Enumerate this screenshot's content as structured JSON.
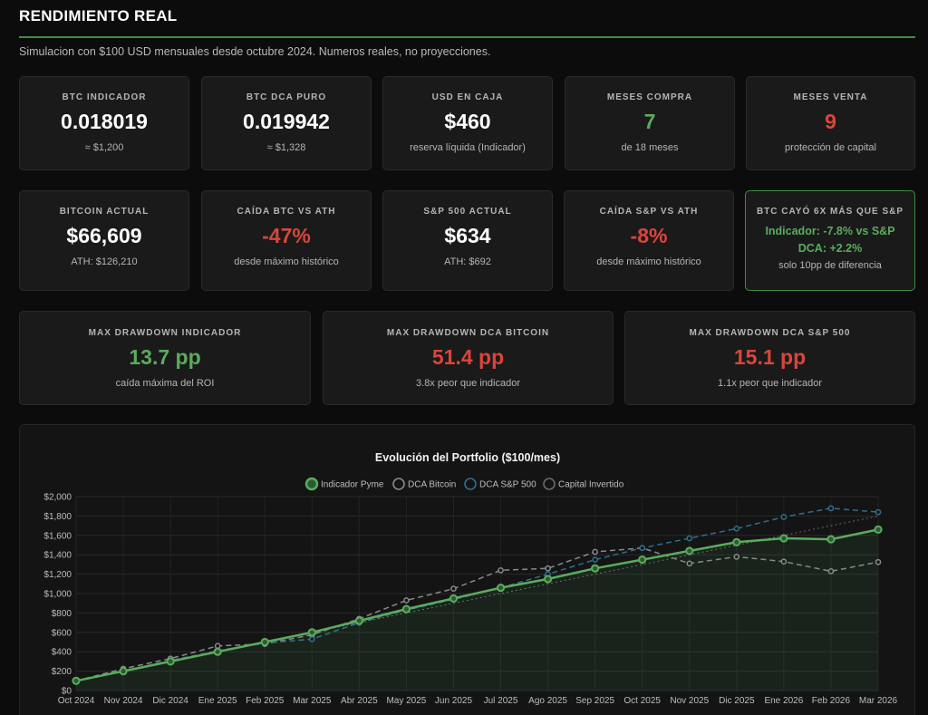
{
  "header": {
    "title": "RENDIMIENTO REAL",
    "subtitle": "Simulacion con $100 USD mensuales desde octubre 2024. Numeros reales, no proyecciones."
  },
  "row1": [
    {
      "label": "BTC INDICADOR",
      "value": "0.018019",
      "sub": "≈ $1,200"
    },
    {
      "label": "BTC DCA PURO",
      "value": "0.019942",
      "sub": "≈ $1,328"
    },
    {
      "label": "USD EN CAJA",
      "value": "$460",
      "sub": "reserva líquida (Indicador)"
    },
    {
      "label": "MESES COMPRA",
      "value": "7",
      "sub": "de 18 meses"
    },
    {
      "label": "MESES VENTA",
      "value": "9",
      "sub": "protección de capital"
    }
  ],
  "row2": [
    {
      "label": "BITCOIN ACTUAL",
      "value": "$66,609",
      "sub": "ATH: $126,210"
    },
    {
      "label": "CAÍDA BTC VS ATH",
      "value": "-47%",
      "sub": "desde máximo histórico"
    },
    {
      "label": "S&P 500 ACTUAL",
      "value": "$634",
      "sub": "ATH: $692"
    },
    {
      "label": "CAÍDA S&P VS ATH",
      "value": "-8%",
      "sub": "desde máximo histórico"
    }
  ],
  "highlight": {
    "label": "BTC CAYÓ 6X MÁS QUE S&P",
    "line1": "Indicador: -7.8% vs S&P",
    "line2": "DCA: +2.2%",
    "sub": "solo 10pp de diferencia"
  },
  "row3": [
    {
      "label": "MAX DRAWDOWN INDICADOR",
      "value": "13.7 pp",
      "sub": "caída máxima del ROI"
    },
    {
      "label": "MAX DRAWDOWN DCA BITCOIN",
      "value": "51.4 pp",
      "sub": "3.8x peor que indicador"
    },
    {
      "label": "MAX DRAWDOWN DCA S&P 500",
      "value": "15.1 pp",
      "sub": "1.1x peor que indicador"
    }
  ],
  "colors": {
    "accent_green": "#5aac5e",
    "red": "#d9463b",
    "btc_gray": "#8a8a8a",
    "sp_blue": "#2f6f8f",
    "capital": "#6a6a6a"
  },
  "chart_data": {
    "type": "line",
    "title": "Evolución del Portfolio ($100/mes)",
    "categories": [
      "Oct 2024",
      "Nov 2024",
      "Dic 2024",
      "Ene 2025",
      "Feb 2025",
      "Mar 2025",
      "Abr 2025",
      "May 2025",
      "Jun 2025",
      "Jul 2025",
      "Ago 2025",
      "Sep 2025",
      "Oct 2025",
      "Nov 2025",
      "Dic 2025",
      "Ene 2026",
      "Feb 2026",
      "Mar 2026"
    ],
    "series": [
      {
        "name": "Indicador Pyme",
        "color": "#5aac5e",
        "values": [
          100,
          200,
          300,
          400,
          500,
          600,
          720,
          840,
          950,
          1060,
          1150,
          1260,
          1350,
          1440,
          1530,
          1570,
          1560,
          1660
        ]
      },
      {
        "name": "DCA Bitcoin",
        "color": "#8a8a8a",
        "values": [
          100,
          225,
          330,
          460,
          480,
          575,
          740,
          930,
          1050,
          1240,
          1260,
          1430,
          1470,
          1310,
          1380,
          1330,
          1230,
          1325
        ]
      },
      {
        "name": "DCA S&P 500",
        "color": "#2f6f8f",
        "values": [
          95,
          200,
          310,
          410,
          490,
          530,
          700,
          830,
          940,
          1060,
          1200,
          1350,
          1470,
          1570,
          1670,
          1790,
          1880,
          1840
        ]
      },
      {
        "name": "Capital Invertido",
        "color": "#6a6a6a",
        "values": [
          100,
          200,
          300,
          400,
          500,
          600,
          700,
          800,
          900,
          1000,
          1100,
          1200,
          1300,
          1400,
          1500,
          1600,
          1700,
          1800
        ]
      }
    ],
    "ylim": [
      0,
      2000
    ],
    "yticks": [
      "$0",
      "$200",
      "$400",
      "$600",
      "$800",
      "$1,000",
      "$1,200",
      "$1,400",
      "$1,600",
      "$1,800",
      "$2,000"
    ],
    "legend": "top-center",
    "grid": true
  }
}
